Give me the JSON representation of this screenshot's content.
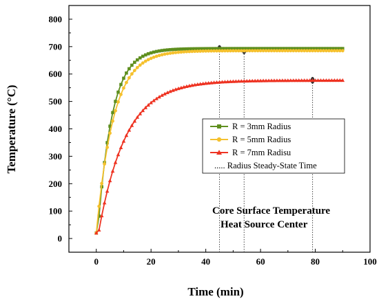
{
  "chart_data": {
    "type": "line",
    "xlabel": "Time (min)",
    "ylabel": "Temperature (°C)",
    "xlim": [
      -10,
      100
    ],
    "ylim": [
      -50,
      850
    ],
    "xticks": [
      0,
      20,
      40,
      60,
      80,
      100
    ],
    "yticks": [
      0,
      100,
      200,
      300,
      400,
      500,
      600,
      700,
      800
    ],
    "grid": false,
    "legend_position": "center-right",
    "annotations": [
      "Core Surface Temperature",
      "Heat Source Center"
    ],
    "series": [
      {
        "name": "R = 3mm Radius",
        "color": "#5f8f1f",
        "marker": "square",
        "T0": 20,
        "Tss": 693,
        "tau": 5.2,
        "curve_start": 0.5
      },
      {
        "name": "R = 5mm Radius",
        "color": "#f5c12e",
        "marker": "circle",
        "T0": 20,
        "Tss": 685,
        "tau": 6.3,
        "curve_start": 0
      },
      {
        "name": "R = 7mm Radisu",
        "color": "#ee3322",
        "marker": "triangle",
        "T0": 20,
        "Tss": 577,
        "tau": 10.0,
        "curve_start": 0.8
      }
    ],
    "reference_lines": {
      "label": "..... Radius Steady-State Time",
      "x": [
        45,
        54,
        79
      ],
      "y": [
        693,
        685,
        577
      ]
    }
  }
}
